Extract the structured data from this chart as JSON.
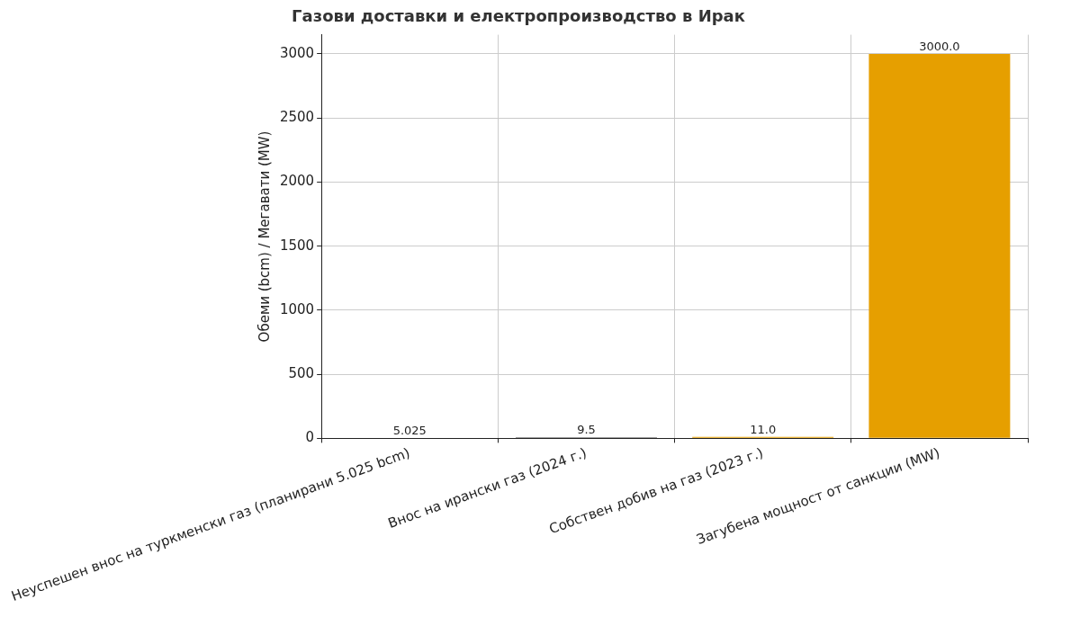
{
  "chart_data": {
    "type": "bar",
    "title": "Газови доставки и електропроизводство в Ирак",
    "ylabel": "Обеми (bcm) / Мегавати (MW)",
    "categories": [
      "Неуспешен внос на туркменски газ (планирани 5.025 bcm)",
      "Внос на ирански газ (2024 г.)",
      "Собствен добив на газ (2023 г.)",
      "Загубена мощност от санкции (MW)"
    ],
    "values": [
      5.025,
      9.5,
      11.0,
      3000.0
    ],
    "value_labels": [
      "5.025",
      "9.5",
      "11.0",
      "3000.0"
    ],
    "colors": [
      "#d3d3d3",
      "#808080",
      "#e69f00",
      "#e69f00"
    ],
    "ylim": [
      0,
      3150
    ],
    "yticks": [
      0,
      500,
      1000,
      1500,
      2000,
      2500,
      3000
    ],
    "grid": true,
    "legend": false
  }
}
